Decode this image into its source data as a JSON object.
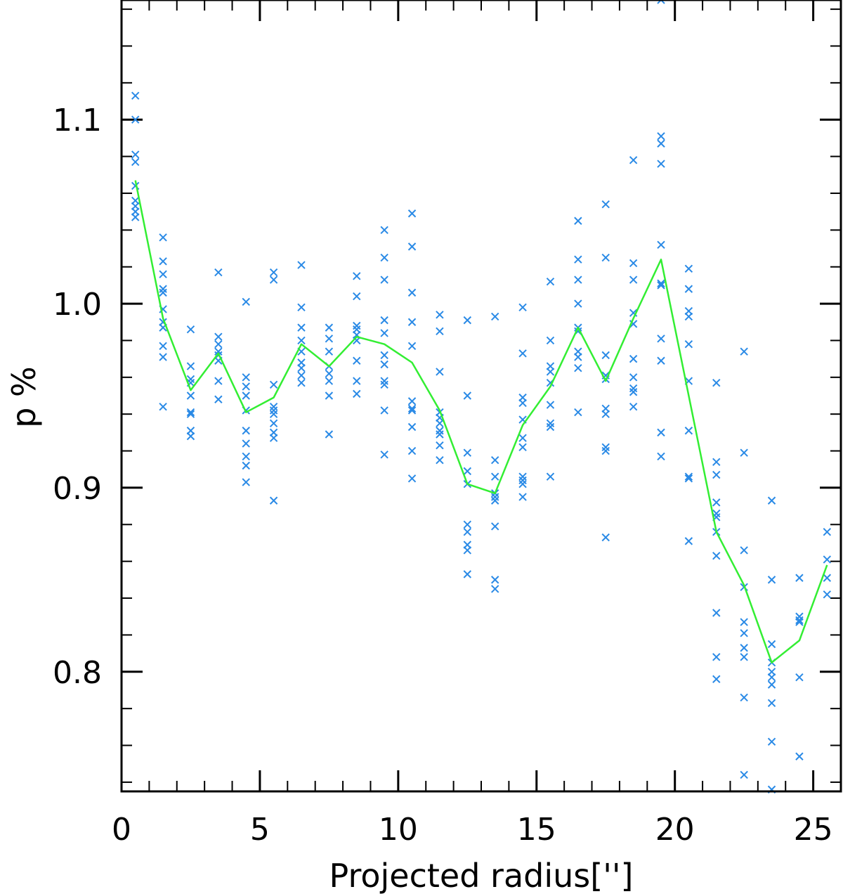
{
  "chart_data": {
    "type": "scatter",
    "title": "",
    "xlabel": "Projected radius['']",
    "ylabel": "p %",
    "xlim": [
      0,
      26
    ],
    "ylim": [
      0.735,
      1.165
    ],
    "x_ticks": [
      0,
      5,
      10,
      15,
      20,
      25
    ],
    "x_tick_labels": [
      "0",
      "5",
      "10",
      "15",
      "20",
      "25"
    ],
    "y_ticks": [
      0.8,
      0.9,
      1.0,
      1.1
    ],
    "y_tick_labels": [
      "0.8",
      "0.9",
      "1.0",
      "1.1"
    ],
    "x_minor_step": 1,
    "y_minor_step": 0.02,
    "grid": false,
    "colors": {
      "points": "#2a8ae6",
      "line": "#33ee33",
      "axes": "#000000"
    },
    "scatter": {
      "marker": "x",
      "bins": [
        {
          "x": 0.5,
          "y": [
            1.113,
            1.1,
            1.081,
            1.077,
            1.064,
            1.056,
            1.053,
            1.05,
            1.047
          ]
        },
        {
          "x": 1.5,
          "y": [
            1.036,
            1.023,
            1.016,
            1.008,
            1.006,
            0.997,
            0.99,
            0.987,
            0.977,
            0.971,
            0.944
          ]
        },
        {
          "x": 2.5,
          "y": [
            0.986,
            0.966,
            0.959,
            0.957,
            0.95,
            0.941,
            0.94,
            0.931,
            0.928
          ]
        },
        {
          "x": 3.5,
          "y": [
            1.017,
            0.982,
            0.978,
            0.974,
            0.972,
            0.969,
            0.958,
            0.948
          ]
        },
        {
          "x": 4.5,
          "y": [
            1.001,
            0.96,
            0.955,
            0.95,
            0.942,
            0.931,
            0.924,
            0.917,
            0.912,
            0.903
          ]
        },
        {
          "x": 5.5,
          "y": [
            1.017,
            1.013,
            0.956,
            0.944,
            0.942,
            0.94,
            0.935,
            0.93,
            0.927,
            0.893
          ]
        },
        {
          "x": 6.5,
          "y": [
            1.021,
            0.998,
            0.987,
            0.98,
            0.974,
            0.968,
            0.965,
            0.961,
            0.957
          ]
        },
        {
          "x": 7.5,
          "y": [
            0.987,
            0.981,
            0.974,
            0.966,
            0.962,
            0.958,
            0.95,
            0.929
          ]
        },
        {
          "x": 8.5,
          "y": [
            1.015,
            1.004,
            0.988,
            0.986,
            0.983,
            0.98,
            0.969,
            0.958,
            0.951
          ]
        },
        {
          "x": 9.5,
          "y": [
            1.04,
            1.025,
            1.013,
            0.991,
            0.984,
            0.972,
            0.967,
            0.958,
            0.956,
            0.942,
            0.918
          ]
        },
        {
          "x": 10.5,
          "y": [
            1.049,
            1.031,
            1.006,
            0.99,
            0.977,
            0.947,
            0.943,
            0.942,
            0.933,
            0.92,
            0.905
          ]
        },
        {
          "x": 11.5,
          "y": [
            0.994,
            0.985,
            0.963,
            0.941,
            0.938,
            0.935,
            0.931,
            0.929,
            0.923,
            0.915
          ]
        },
        {
          "x": 12.5,
          "y": [
            0.991,
            0.95,
            0.919,
            0.909,
            0.902,
            0.88,
            0.876,
            0.869,
            0.866,
            0.853
          ]
        },
        {
          "x": 13.5,
          "y": [
            0.993,
            0.915,
            0.906,
            0.897,
            0.895,
            0.893,
            0.879,
            0.85,
            0.845
          ]
        },
        {
          "x": 14.5,
          "y": [
            0.998,
            0.973,
            0.949,
            0.946,
            0.937,
            0.927,
            0.922,
            0.906,
            0.904,
            0.902,
            0.895
          ]
        },
        {
          "x": 15.5,
          "y": [
            1.012,
            0.98,
            0.966,
            0.963,
            0.957,
            0.945,
            0.935,
            0.933,
            0.906
          ]
        },
        {
          "x": 16.5,
          "y": [
            1.045,
            1.024,
            1.013,
            1.0,
            0.987,
            0.985,
            0.974,
            0.971,
            0.965,
            0.941
          ]
        },
        {
          "x": 17.5,
          "y": [
            1.054,
            1.025,
            0.972,
            0.961,
            0.959,
            0.943,
            0.94,
            0.922,
            0.92,
            0.873
          ]
        },
        {
          "x": 18.5,
          "y": [
            1.078,
            1.022,
            1.013,
            0.995,
            0.989,
            0.97,
            0.96,
            0.954,
            0.952,
            0.944
          ]
        },
        {
          "x": 19.5,
          "y": [
            1.165,
            1.091,
            1.087,
            1.076,
            1.032,
            1.011,
            1.01,
            0.981,
            0.969,
            0.93,
            0.917
          ]
        },
        {
          "x": 20.5,
          "y": [
            1.019,
            1.008,
            0.996,
            0.993,
            0.978,
            0.958,
            0.931,
            0.906,
            0.905,
            0.871
          ]
        },
        {
          "x": 21.5,
          "y": [
            0.957,
            0.914,
            0.907,
            0.892,
            0.886,
            0.884,
            0.876,
            0.863,
            0.832,
            0.808,
            0.796
          ]
        },
        {
          "x": 22.5,
          "y": [
            0.974,
            0.919,
            0.866,
            0.846,
            0.827,
            0.821,
            0.813,
            0.808,
            0.786,
            0.744
          ]
        },
        {
          "x": 23.5,
          "y": [
            0.893,
            0.85,
            0.815,
            0.805,
            0.8,
            0.797,
            0.793,
            0.783,
            0.762,
            0.736
          ]
        },
        {
          "x": 24.5,
          "y": [
            0.851,
            0.83,
            0.828,
            0.827,
            0.797,
            0.754
          ]
        },
        {
          "x": 25.5,
          "y": [
            0.876,
            0.861,
            0.851,
            0.842
          ]
        }
      ]
    },
    "line": {
      "x": [
        0.5,
        1.5,
        2.5,
        3.5,
        4.5,
        5.5,
        6.5,
        7.5,
        8.5,
        9.5,
        10.5,
        11.5,
        12.5,
        13.5,
        14.5,
        15.5,
        16.5,
        17.5,
        18.5,
        19.5,
        20.5,
        21.5,
        22.5,
        23.5,
        24.5,
        25.5
      ],
      "y": [
        1.067,
        0.992,
        0.953,
        0.973,
        0.941,
        0.949,
        0.978,
        0.966,
        0.982,
        0.978,
        0.968,
        0.942,
        0.902,
        0.897,
        0.934,
        0.955,
        0.987,
        0.958,
        0.992,
        1.024,
        0.95,
        0.876,
        0.847,
        0.805,
        0.817,
        0.858
      ]
    }
  }
}
